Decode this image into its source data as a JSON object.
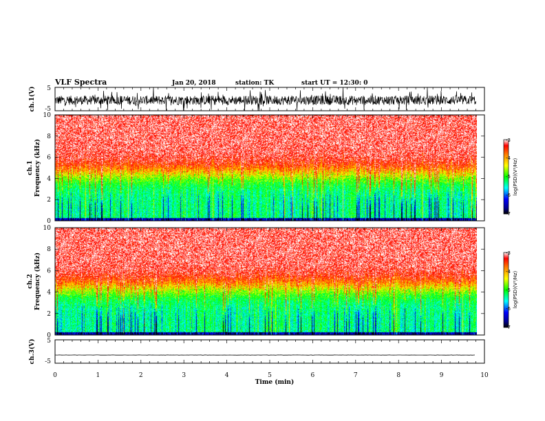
{
  "header": {
    "title": "VLF Spectra",
    "date": "Jan 20, 2018",
    "station": "station: TK",
    "start_time": "start UT = 12:30: 0"
  },
  "chart_data": [
    {
      "type": "line",
      "name": "ch1_waveform",
      "ylabel": "ch.1(V)",
      "ylim": [
        -5,
        5
      ],
      "y_ticks": [
        "5",
        "-5"
      ],
      "x_range": [
        0,
        10
      ],
      "color": "#000000",
      "baseline_v": -0.5,
      "swing_v": 4.0
    },
    {
      "type": "heatmap",
      "name": "ch1_spectrogram",
      "ylabel": "ch.1 Frequency (kHz)",
      "ylabel_lines": [
        "ch.1",
        "Frequency (kHz)"
      ],
      "ylim": [
        0,
        10
      ],
      "y_ticks": [
        "0",
        "2",
        "4",
        "6",
        "8",
        "10"
      ],
      "x_range": [
        0,
        9.8
      ],
      "colorbar": {
        "label": "log(PSD)(V²/Hz)",
        "range": [
          -7,
          -3
        ],
        "ticks": [
          "-3",
          "-4",
          "-5",
          "-6",
          "-7"
        ]
      },
      "profile": {
        "noise_floor_log_psd": -5.3,
        "high_band_log_psd": -3.2,
        "transition_khz": 4.5
      }
    },
    {
      "type": "heatmap",
      "name": "ch2_spectrogram",
      "ylabel": "ch.2 Frequency (kHz)",
      "ylabel_lines": [
        "ch.2",
        "Frequency (kHz)"
      ],
      "ylim": [
        0,
        10
      ],
      "y_ticks": [
        "0",
        "2",
        "4",
        "6",
        "8",
        "10"
      ],
      "x_range": [
        0,
        9.8
      ],
      "colorbar": {
        "label": "log(PSD)(V²/Hz)",
        "range": [
          -7,
          -3
        ],
        "ticks": [
          "-3",
          "-4",
          "-5",
          "-6",
          "-7"
        ]
      },
      "profile": {
        "noise_floor_log_psd": -5.3,
        "high_band_log_psd": -3.2,
        "transition_khz": 4.5
      }
    },
    {
      "type": "line",
      "name": "ch3_waveform",
      "ylabel": "ch.3(V)",
      "ylim": [
        -5,
        5
      ],
      "y_ticks": [
        "5",
        "-5"
      ],
      "x_range": [
        0,
        10
      ],
      "color": "#000000",
      "baseline_v": -1.5,
      "swing_v": 0.1
    }
  ],
  "x_axis": {
    "label": "Time (min)",
    "range": [
      0,
      10
    ],
    "ticks": [
      "0",
      "1",
      "2",
      "3",
      "4",
      "5",
      "6",
      "7",
      "8",
      "9",
      "10"
    ]
  }
}
